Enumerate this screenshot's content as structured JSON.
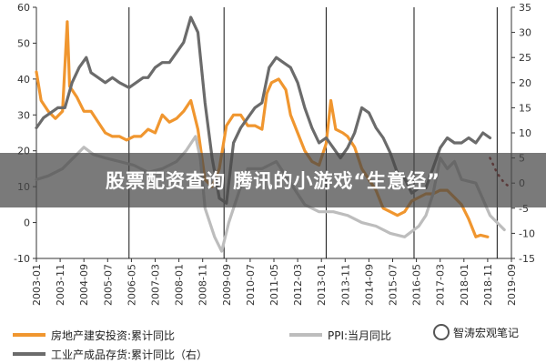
{
  "chart_data": {
    "type": "line",
    "left_axis": {
      "min": -10,
      "max": 60,
      "ticks": [
        -10,
        0,
        10,
        20,
        30,
        40,
        50,
        60
      ]
    },
    "right_axis": {
      "min": -15,
      "max": 35,
      "ticks": [
        -15,
        -10,
        -5,
        0,
        5,
        10,
        15,
        20,
        25,
        30,
        35
      ]
    },
    "x_range": [
      "2003-01",
      "2019-09"
    ],
    "x_tick_labels": [
      "2003-01",
      "2003-11",
      "2004-09",
      "2005-07",
      "2006-05",
      "2007-03",
      "2008-01",
      "2008-11",
      "2009-09",
      "2010-07",
      "2011-05",
      "2012-03",
      "2013-01",
      "2013-11",
      "2014-09",
      "2015-07",
      "2016-05",
      "2017-03",
      "2018-01",
      "2018-11",
      "2019-09"
    ],
    "vertical_markers": [
      "2006-04",
      "2009-08",
      "2013-03",
      "2016-04",
      "2019-03"
    ],
    "series": [
      {
        "name": "房地产建安投资:累计同比",
        "axis": "left",
        "color": "#F0962F",
        "points": [
          [
            "2003-01",
            42
          ],
          [
            "2003-03",
            34
          ],
          [
            "2003-06",
            31
          ],
          [
            "2003-09",
            29
          ],
          [
            "2003-12",
            31
          ],
          [
            "2004-02",
            56
          ],
          [
            "2004-03",
            38
          ],
          [
            "2004-06",
            35
          ],
          [
            "2004-09",
            31
          ],
          [
            "2004-12",
            31
          ],
          [
            "2005-03",
            28
          ],
          [
            "2005-06",
            25
          ],
          [
            "2005-09",
            24
          ],
          [
            "2005-12",
            24
          ],
          [
            "2006-03",
            23
          ],
          [
            "2006-06",
            24
          ],
          [
            "2006-09",
            24
          ],
          [
            "2006-12",
            26
          ],
          [
            "2007-03",
            25
          ],
          [
            "2007-06",
            30
          ],
          [
            "2007-09",
            28
          ],
          [
            "2007-12",
            29
          ],
          [
            "2008-03",
            31
          ],
          [
            "2008-06",
            34
          ],
          [
            "2008-09",
            26
          ],
          [
            "2008-12",
            12
          ],
          [
            "2009-03",
            10
          ],
          [
            "2009-06",
            15
          ],
          [
            "2009-09",
            27
          ],
          [
            "2009-12",
            30
          ],
          [
            "2010-03",
            30
          ],
          [
            "2010-06",
            27
          ],
          [
            "2010-09",
            27
          ],
          [
            "2010-12",
            26
          ],
          [
            "2011-02",
            36
          ],
          [
            "2011-04",
            39
          ],
          [
            "2011-07",
            40
          ],
          [
            "2011-10",
            37
          ],
          [
            "2011-12",
            30
          ],
          [
            "2012-03",
            25
          ],
          [
            "2012-06",
            20
          ],
          [
            "2012-09",
            17
          ],
          [
            "2012-12",
            16
          ],
          [
            "2013-03",
            22
          ],
          [
            "2013-05",
            34
          ],
          [
            "2013-07",
            26
          ],
          [
            "2013-10",
            25
          ],
          [
            "2013-12",
            24
          ],
          [
            "2014-03",
            21
          ],
          [
            "2014-06",
            15
          ],
          [
            "2014-09",
            12
          ],
          [
            "2014-12",
            9
          ],
          [
            "2015-03",
            4
          ],
          [
            "2015-06",
            3
          ],
          [
            "2015-09",
            2
          ],
          [
            "2015-12",
            3
          ],
          [
            "2016-03",
            6
          ],
          [
            "2016-06",
            7
          ],
          [
            "2016-09",
            8
          ],
          [
            "2016-12",
            8
          ],
          [
            "2017-03",
            9
          ],
          [
            "2017-06",
            9
          ],
          [
            "2017-09",
            7
          ],
          [
            "2017-12",
            5
          ],
          [
            "2018-03",
            1
          ],
          [
            "2018-06",
            -4
          ],
          [
            "2018-08",
            -3.5
          ],
          [
            "2018-11",
            -4
          ]
        ]
      },
      {
        "name": "PPI:当月同比",
        "axis": "left",
        "color": "#BDBDBD",
        "points": [
          [
            "2003-01",
            12
          ],
          [
            "2003-06",
            13
          ],
          [
            "2003-12",
            15
          ],
          [
            "2004-06",
            19
          ],
          [
            "2004-09",
            21
          ],
          [
            "2005-01",
            19
          ],
          [
            "2005-06",
            18
          ],
          [
            "2005-12",
            17
          ],
          [
            "2006-06",
            16
          ],
          [
            "2006-12",
            14
          ],
          [
            "2007-06",
            15
          ],
          [
            "2007-12",
            17
          ],
          [
            "2008-04",
            20
          ],
          [
            "2008-08",
            24
          ],
          [
            "2008-10",
            18
          ],
          [
            "2008-12",
            4
          ],
          [
            "2009-04",
            -4
          ],
          [
            "2009-07",
            -8
          ],
          [
            "2009-10",
            0
          ],
          [
            "2010-03",
            10
          ],
          [
            "2010-06",
            15
          ],
          [
            "2010-12",
            15
          ],
          [
            "2011-06",
            17
          ],
          [
            "2011-12",
            11
          ],
          [
            "2012-06",
            5
          ],
          [
            "2012-12",
            3
          ],
          [
            "2013-06",
            3
          ],
          [
            "2013-12",
            2
          ],
          [
            "2014-06",
            0
          ],
          [
            "2014-12",
            -1
          ],
          [
            "2015-06",
            -3
          ],
          [
            "2015-12",
            -4
          ],
          [
            "2016-06",
            -1
          ],
          [
            "2016-09",
            2
          ],
          [
            "2016-12",
            8
          ],
          [
            "2017-03",
            18
          ],
          [
            "2017-06",
            15
          ],
          [
            "2017-09",
            17
          ],
          [
            "2017-12",
            12
          ],
          [
            "2018-06",
            11
          ],
          [
            "2018-12",
            2
          ],
          [
            "2019-06",
            -2
          ]
        ]
      },
      {
        "name": "工业产成品存货:累计同比（右）",
        "axis": "right",
        "color": "#6B6B6B",
        "points": [
          [
            "2003-01",
            11
          ],
          [
            "2003-04",
            13
          ],
          [
            "2003-07",
            14
          ],
          [
            "2003-10",
            15
          ],
          [
            "2004-01",
            15
          ],
          [
            "2004-04",
            20
          ],
          [
            "2004-07",
            23
          ],
          [
            "2004-10",
            25
          ],
          [
            "2004-12",
            22
          ],
          [
            "2005-03",
            21
          ],
          [
            "2005-06",
            20
          ],
          [
            "2005-09",
            21
          ],
          [
            "2005-12",
            20
          ],
          [
            "2006-04",
            19
          ],
          [
            "2006-07",
            20
          ],
          [
            "2006-10",
            21
          ],
          [
            "2006-12",
            21
          ],
          [
            "2007-03",
            23
          ],
          [
            "2007-06",
            24
          ],
          [
            "2007-09",
            24
          ],
          [
            "2007-12",
            26
          ],
          [
            "2008-03",
            28
          ],
          [
            "2008-06",
            33
          ],
          [
            "2008-09",
            30
          ],
          [
            "2008-12",
            16
          ],
          [
            "2009-03",
            5
          ],
          [
            "2009-06",
            -3
          ],
          [
            "2009-09",
            -4
          ],
          [
            "2009-12",
            8
          ],
          [
            "2010-03",
            11
          ],
          [
            "2010-06",
            13
          ],
          [
            "2010-09",
            15
          ],
          [
            "2010-12",
            16
          ],
          [
            "2011-03",
            23
          ],
          [
            "2011-06",
            25
          ],
          [
            "2011-09",
            24
          ],
          [
            "2011-12",
            23
          ],
          [
            "2012-03",
            20
          ],
          [
            "2012-06",
            15
          ],
          [
            "2012-09",
            11
          ],
          [
            "2012-12",
            8
          ],
          [
            "2013-03",
            9
          ],
          [
            "2013-06",
            7
          ],
          [
            "2013-09",
            5
          ],
          [
            "2013-12",
            7
          ],
          [
            "2014-03",
            10
          ],
          [
            "2014-06",
            15
          ],
          [
            "2014-09",
            14
          ],
          [
            "2014-12",
            11
          ],
          [
            "2015-03",
            9
          ],
          [
            "2015-06",
            6
          ],
          [
            "2015-09",
            2
          ],
          [
            "2015-12",
            1
          ],
          [
            "2016-03",
            -2
          ],
          [
            "2016-06",
            -1
          ],
          [
            "2016-09",
            -1
          ],
          [
            "2016-12",
            3
          ],
          [
            "2017-03",
            7
          ],
          [
            "2017-06",
            9
          ],
          [
            "2017-09",
            8
          ],
          [
            "2017-12",
            8
          ],
          [
            "2018-03",
            9
          ],
          [
            "2018-06",
            8
          ],
          [
            "2018-09",
            10
          ],
          [
            "2018-12",
            9
          ]
        ]
      },
      {
        "name": "",
        "axis": "right",
        "color": "#8B1A1A",
        "style": "dotted",
        "points": [
          [
            "2018-12",
            5
          ],
          [
            "2019-03",
            2
          ],
          [
            "2019-06",
            0
          ],
          [
            "2019-09",
            -1
          ]
        ]
      }
    ],
    "legend": [
      {
        "label": "房地产建安投资:累计同比",
        "color": "#F0962F"
      },
      {
        "label": "PPI:当月同比",
        "color": "#BDBDBD"
      },
      {
        "label": "工业产成品存货:累计同比（右）",
        "color": "#6B6B6B"
      }
    ]
  },
  "overlay": {
    "banner_title": "股票配资查询 腾讯的小游戏“生意经”"
  },
  "watermark": {
    "icon": "wechat-logo-icon",
    "text": "智涛宏观笔记"
  }
}
